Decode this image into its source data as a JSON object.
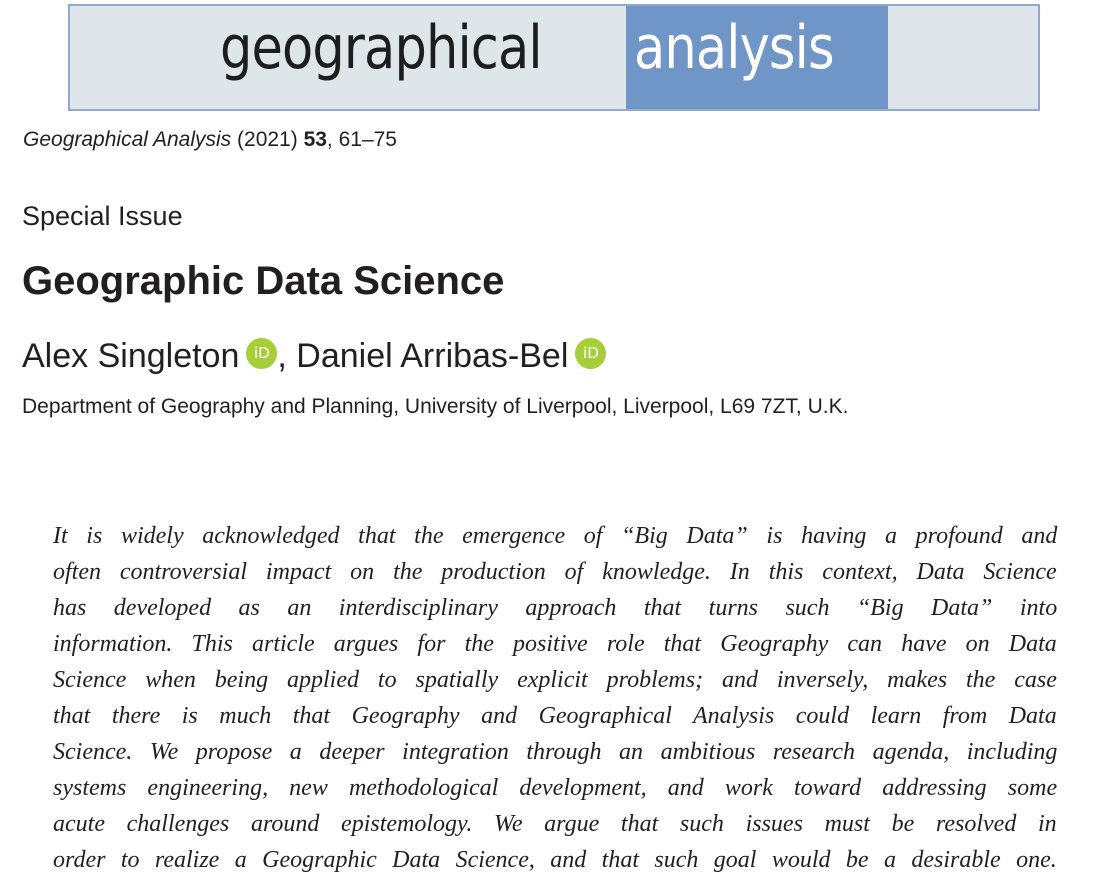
{
  "banner": {
    "word1": "geographical",
    "word2": "analysis"
  },
  "citation": {
    "journal": "Geographical Analysis",
    "year": "(2021)",
    "volume": "53",
    "pages": ", 61–75"
  },
  "section_label": "Special Issue",
  "title": "Geographic Data Science",
  "authors": {
    "author1": "Alex Singleton",
    "orcid1": "iD",
    "separator": ", ",
    "author2": "Daniel Arribas-Bel",
    "orcid2": "iD"
  },
  "affiliation": "Department of Geography and Planning, University of Liverpool, Liverpool, L69 7ZT, U.K.",
  "abstract_lines": [
    "It is widely acknowledged that the emergence of “Big Data” is having a profound and",
    "often controversial impact on the production of knowledge. In this context, Data Science",
    "has developed as an interdisciplinary approach that turns such “Big Data” into",
    "information. This article argues for the positive role that Geography can have on Data",
    "Science when being applied to spatially explicit problems; and inversely, makes the case",
    "that there is much that Geography and Geographical Analysis could learn from Data",
    "Science. We propose a deeper integration through an ambitious research agenda, including",
    "systems engineering, new methodological development, and work toward addressing some",
    "acute challenges around epistemology. We argue that such issues must be resolved in",
    "order to realize a Geographic Data Science, and that such goal would be a desirable one."
  ]
}
